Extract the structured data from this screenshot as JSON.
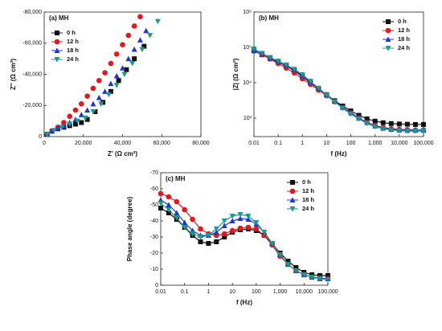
{
  "chart_data": [
    {
      "type": "scatter",
      "title": "(a) MH",
      "xlabel": "Z' (Ω cm²)",
      "ylabel": "Z'' (Ω cm²)",
      "xlim": [
        0,
        80000
      ],
      "xticks": [
        0,
        {
          "value": 20000,
          "label": "20,000"
        },
        {
          "value": 40000,
          "label": "40,000"
        },
        {
          "value": 60000,
          "label": "60,000"
        },
        {
          "value": 80000,
          "label": "80,000"
        }
      ],
      "ylim": [
        0,
        -80000
      ],
      "yticks": [
        0,
        {
          "value": -20000,
          "label": "-20,000"
        },
        {
          "value": -40000,
          "label": "-40,000"
        },
        {
          "value": -60000,
          "label": "-60,000"
        },
        {
          "value": -80000,
          "label": "-80,000"
        }
      ],
      "legend": "upper left",
      "series": [
        {
          "name": "0 h",
          "color": "#111111",
          "marker": "square",
          "x": [
            1500,
            4000,
            7000,
            10000,
            13000,
            16000,
            19000,
            22000,
            26000,
            30000,
            34000,
            38000,
            42000,
            46000,
            51000
          ],
          "values": [
            -1500,
            -3500,
            -5000,
            -6000,
            -7000,
            -8000,
            -9000,
            -11000,
            -16000,
            -22000,
            -29000,
            -36000,
            -43000,
            -50000,
            -58000
          ]
        },
        {
          "name": "12 h",
          "color": "#e8161b",
          "marker": "circle",
          "x": [
            1500,
            4000,
            7000,
            10000,
            13000,
            16000,
            19000,
            22000,
            25000,
            28000,
            31000,
            34000,
            37000,
            40000,
            43000,
            46000,
            49000
          ],
          "values": [
            -1500,
            -3500,
            -6000,
            -9000,
            -13000,
            -17000,
            -21000,
            -26000,
            -31000,
            -36000,
            -41000,
            -47000,
            -53000,
            -59000,
            -65000,
            -71000,
            -77000
          ]
        },
        {
          "name": "18 h",
          "color": "#1f33e0",
          "marker": "triangle-up",
          "x": [
            1500,
            4000,
            7000,
            10000,
            13000,
            16000,
            19000,
            22000,
            25000,
            28000,
            31000,
            34000,
            37000,
            40000,
            43000,
            46000,
            49000,
            52000
          ],
          "values": [
            -1500,
            -3500,
            -5500,
            -7000,
            -9000,
            -11000,
            -14000,
            -17000,
            -21000,
            -25000,
            -29000,
            -34000,
            -39000,
            -44000,
            -50000,
            -56000,
            -62000,
            -68000
          ]
        },
        {
          "name": "24 h",
          "color": "#1b9a8c",
          "marker": "triangle-down",
          "x": [
            1500,
            5000,
            9000,
            13000,
            17000,
            21000,
            25000,
            29000,
            33000,
            37000,
            41000,
            45000,
            50000,
            54000,
            58000
          ],
          "values": [
            -1500,
            -4000,
            -6000,
            -8000,
            -10000,
            -12000,
            -16000,
            -21000,
            -27000,
            -33000,
            -40000,
            -47000,
            -56000,
            -65000,
            -74000
          ]
        }
      ]
    },
    {
      "type": "line",
      "title": "(b) MH",
      "xlabel": "f (Hz)",
      "ylabel": "|Z| (Ω cm²)",
      "xscale": "log",
      "yscale": "log",
      "xlim": [
        0.01,
        100000
      ],
      "xticks": [
        0.01,
        0.1,
        1,
        10,
        100,
        {
          "value": 1000,
          "label": "1,000"
        },
        {
          "value": 10000,
          "label": "10,000"
        },
        {
          "value": 100000,
          "label": "100,000"
        }
      ],
      "ylim": [
        300,
        1000000
      ],
      "yticks": [
        {
          "value": 1000,
          "label": "10³"
        },
        {
          "value": 10000,
          "label": "10⁴"
        },
        {
          "value": 100000,
          "label": "10⁵"
        },
        {
          "value": 1000000,
          "label": "10⁶"
        }
      ],
      "legend": "upper right",
      "x": [
        0.01,
        0.0215,
        0.0464,
        0.1,
        0.215,
        0.464,
        1,
        2.15,
        4.64,
        10,
        21.5,
        46.4,
        100,
        215,
        464,
        1000,
        2150,
        4640,
        10000,
        21500,
        46400,
        100000
      ],
      "series": [
        {
          "name": "0 h",
          "color": "#111111",
          "marker": "square",
          "values": [
            80000,
            62000,
            48000,
            38000,
            30000,
            22000,
            15000,
            10000,
            6800,
            4600,
            3100,
            2200,
            1600,
            1200,
            950,
            820,
            740,
            700,
            680,
            670,
            660,
            660
          ]
        },
        {
          "name": "12 h",
          "color": "#e8161b",
          "marker": "circle",
          "values": [
            82000,
            63000,
            47000,
            35000,
            26000,
            19000,
            13000,
            9000,
            6200,
            4300,
            2900,
            2000,
            1400,
            1000,
            760,
            620,
            540,
            500,
            480,
            470,
            460,
            460
          ]
        },
        {
          "name": "18 h",
          "color": "#1f33e0",
          "marker": "triangle-up",
          "values": [
            85000,
            66000,
            51000,
            40000,
            31000,
            23000,
            16000,
            10500,
            6900,
            4600,
            3000,
            2000,
            1400,
            1000,
            750,
            600,
            520,
            480,
            460,
            450,
            450,
            450
          ]
        },
        {
          "name": "24 h",
          "color": "#1b9a8c",
          "marker": "triangle-down",
          "values": [
            90000,
            68000,
            52000,
            41000,
            32000,
            24000,
            17000,
            11000,
            7000,
            4500,
            2900,
            1900,
            1300,
            950,
            700,
            570,
            500,
            460,
            440,
            430,
            430,
            430
          ]
        }
      ]
    },
    {
      "type": "line",
      "title": "(c) MH",
      "xlabel": "f (Hz)",
      "ylabel": "Phase angle (degree)",
      "xscale": "log",
      "xlim": [
        0.01,
        100000
      ],
      "xticks": [
        0.01,
        0.1,
        1,
        10,
        100,
        {
          "value": 1000,
          "label": "1,000"
        },
        {
          "value": 10000,
          "label": "10,000"
        },
        {
          "value": 100000,
          "label": "100,000"
        }
      ],
      "ylim": [
        0,
        -70
      ],
      "yticks": [
        0,
        -10,
        -20,
        -30,
        -40,
        -50,
        -60,
        -70
      ],
      "legend": "upper right",
      "x": [
        0.01,
        0.0215,
        0.0464,
        0.1,
        0.215,
        0.464,
        1,
        2.15,
        4.64,
        10,
        21.5,
        46.4,
        100,
        215,
        464,
        1000,
        2150,
        4640,
        10000,
        21500,
        46400,
        100000
      ],
      "series": [
        {
          "name": "0 h",
          "color": "#111111",
          "marker": "square",
          "values": [
            -48,
            -45,
            -41,
            -36,
            -31,
            -27,
            -26,
            -27,
            -30,
            -33,
            -34.5,
            -35,
            -34,
            -31,
            -26,
            -20,
            -15,
            -11,
            -8,
            -6.5,
            -6,
            -6
          ]
        },
        {
          "name": "12 h",
          "color": "#e8161b",
          "marker": "circle",
          "values": [
            -57,
            -55,
            -52,
            -47,
            -41,
            -35,
            -32,
            -31,
            -32,
            -34,
            -35.5,
            -36,
            -35,
            -31,
            -25,
            -18,
            -13,
            -9,
            -6.5,
            -5,
            -4.5,
            -4
          ]
        },
        {
          "name": "18 h",
          "color": "#1f33e0",
          "marker": "triangle-up",
          "values": [
            -53,
            -50,
            -45,
            -39,
            -34,
            -31,
            -31,
            -33,
            -37,
            -40,
            -41.5,
            -41,
            -38,
            -33,
            -26,
            -19,
            -13,
            -9,
            -6.5,
            -5,
            -4,
            -4
          ]
        },
        {
          "name": "24 h",
          "color": "#1b9a8c",
          "marker": "triangle-down",
          "values": [
            -51,
            -47,
            -42,
            -36,
            -32,
            -30,
            -31,
            -35,
            -40,
            -43,
            -44,
            -43,
            -39,
            -33,
            -26,
            -19,
            -13,
            -9,
            -6.5,
            -5,
            -4,
            -3.5
          ]
        }
      ]
    }
  ]
}
